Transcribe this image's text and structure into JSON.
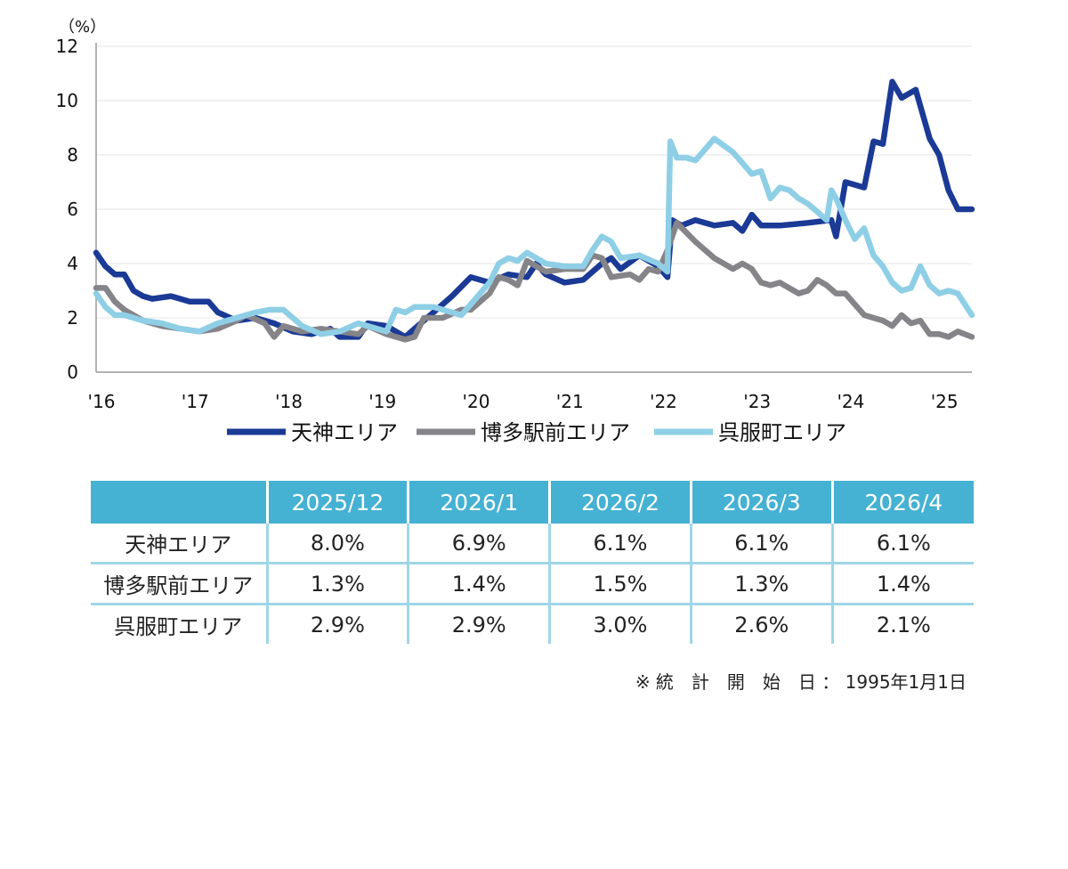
{
  "chart_data": {
    "type": "line",
    "unit_label": "（%）",
    "ylim": [
      0,
      12
    ],
    "yticks": [
      0,
      2,
      4,
      6,
      8,
      10,
      12
    ],
    "x_tick_labels": [
      "'16",
      "'17",
      "'18",
      "'19",
      "'20",
      "'21",
      "'22",
      "'23",
      "'24",
      "'25"
    ],
    "x_range": [
      2016.0,
      2025.35
    ],
    "grid": "horizontal",
    "legend_position": "bottom",
    "series": [
      {
        "name": "天神エリア",
        "color": "#1b3a96",
        "x": [
          2016.0,
          2016.1,
          2016.2,
          2016.3,
          2016.4,
          2016.5,
          2016.6,
          2016.8,
          2017.0,
          2017.2,
          2017.3,
          2017.5,
          2017.7,
          2017.9,
          2018.1,
          2018.3,
          2018.5,
          2018.6,
          2018.8,
          2018.9,
          2019.1,
          2019.2,
          2019.3,
          2019.4,
          2019.6,
          2019.8,
          2020.0,
          2020.2,
          2020.4,
          2020.6,
          2020.7,
          2020.8,
          2021.0,
          2021.2,
          2021.4,
          2021.5,
          2021.6,
          2021.8,
          2022.0,
          2022.1,
          2022.15,
          2022.25,
          2022.4,
          2022.6,
          2022.8,
          2022.9,
          2023.0,
          2023.1,
          2023.3,
          2023.6,
          2023.85,
          2023.9,
          2024.0,
          2024.2,
          2024.3,
          2024.4,
          2024.5,
          2024.6,
          2024.75,
          2024.9,
          2025.0,
          2025.1,
          2025.2,
          2025.35
        ],
        "values": [
          4.4,
          3.9,
          3.6,
          3.6,
          3.0,
          2.8,
          2.7,
          2.8,
          2.6,
          2.6,
          2.2,
          1.9,
          2.0,
          1.8,
          1.5,
          1.4,
          1.6,
          1.3,
          1.3,
          1.8,
          1.7,
          1.5,
          1.3,
          1.6,
          2.2,
          2.8,
          3.5,
          3.3,
          3.6,
          3.5,
          4.0,
          3.6,
          3.3,
          3.4,
          4.0,
          4.2,
          3.8,
          4.3,
          3.9,
          3.5,
          5.6,
          5.4,
          5.6,
          5.4,
          5.5,
          5.2,
          5.8,
          5.4,
          5.4,
          5.5,
          5.6,
          5.0,
          7.0,
          6.8,
          8.5,
          8.4,
          10.7,
          10.1,
          10.4,
          8.6,
          8.0,
          6.7,
          6.0,
          6.0
        ]
      },
      {
        "name": "博多駅前エリア",
        "color": "#858488",
        "x": [
          2016.0,
          2016.1,
          2016.2,
          2016.3,
          2016.5,
          2016.7,
          2016.9,
          2017.1,
          2017.3,
          2017.5,
          2017.6,
          2017.8,
          2017.9,
          2018.0,
          2018.2,
          2018.4,
          2018.6,
          2018.8,
          2018.9,
          2019.1,
          2019.3,
          2019.4,
          2019.5,
          2019.7,
          2019.9,
          2020.0,
          2020.2,
          2020.3,
          2020.4,
          2020.5,
          2020.6,
          2020.8,
          2021.0,
          2021.2,
          2021.3,
          2021.4,
          2021.5,
          2021.7,
          2021.8,
          2021.9,
          2022.0,
          2022.1,
          2022.2,
          2022.4,
          2022.6,
          2022.8,
          2022.9,
          2023.0,
          2023.1,
          2023.2,
          2023.3,
          2023.5,
          2023.6,
          2023.7,
          2023.8,
          2023.9,
          2024.0,
          2024.1,
          2024.2,
          2024.4,
          2024.5,
          2024.6,
          2024.7,
          2024.8,
          2024.9,
          2025.0,
          2025.1,
          2025.2,
          2025.35
        ],
        "values": [
          3.1,
          3.1,
          2.6,
          2.3,
          1.9,
          1.7,
          1.6,
          1.5,
          1.6,
          1.9,
          2.1,
          1.8,
          1.3,
          1.7,
          1.5,
          1.6,
          1.5,
          1.4,
          1.7,
          1.4,
          1.2,
          1.3,
          2.0,
          2.0,
          2.3,
          2.3,
          2.9,
          3.5,
          3.4,
          3.2,
          4.1,
          3.7,
          3.8,
          3.8,
          4.3,
          4.2,
          3.5,
          3.6,
          3.4,
          3.8,
          3.7,
          4.5,
          5.5,
          4.8,
          4.2,
          3.8,
          4.0,
          3.8,
          3.3,
          3.2,
          3.3,
          2.9,
          3.0,
          3.4,
          3.2,
          2.9,
          2.9,
          2.5,
          2.1,
          1.9,
          1.7,
          2.1,
          1.8,
          1.9,
          1.4,
          1.4,
          1.3,
          1.5,
          1.3
        ]
      },
      {
        "name": "呉服町エリア",
        "color": "#8ecfe6",
        "x": [
          2016.0,
          2016.1,
          2016.2,
          2016.3,
          2016.5,
          2016.7,
          2016.9,
          2017.1,
          2017.3,
          2017.5,
          2017.7,
          2017.85,
          2018.0,
          2018.2,
          2018.4,
          2018.6,
          2018.8,
          2019.0,
          2019.1,
          2019.2,
          2019.3,
          2019.4,
          2019.6,
          2019.8,
          2019.9,
          2020.0,
          2020.2,
          2020.3,
          2020.4,
          2020.5,
          2020.6,
          2020.8,
          2021.0,
          2021.2,
          2021.3,
          2021.4,
          2021.5,
          2021.6,
          2021.8,
          2022.0,
          2022.1,
          2022.13,
          2022.2,
          2022.3,
          2022.4,
          2022.5,
          2022.6,
          2022.8,
          2022.9,
          2023.0,
          2023.1,
          2023.2,
          2023.3,
          2023.4,
          2023.5,
          2023.6,
          2023.7,
          2023.8,
          2023.85,
          2023.9,
          2024.0,
          2024.1,
          2024.2,
          2024.3,
          2024.4,
          2024.5,
          2024.6,
          2024.7,
          2024.8,
          2024.9,
          2025.0,
          2025.1,
          2025.2,
          2025.35
        ],
        "values": [
          2.9,
          2.4,
          2.1,
          2.1,
          1.9,
          1.8,
          1.6,
          1.5,
          1.8,
          2.0,
          2.2,
          2.3,
          2.3,
          1.7,
          1.4,
          1.5,
          1.8,
          1.6,
          1.5,
          2.3,
          2.2,
          2.4,
          2.4,
          2.2,
          2.1,
          2.5,
          3.3,
          4.0,
          4.2,
          4.1,
          4.4,
          4.0,
          3.9,
          3.9,
          4.5,
          5.0,
          4.8,
          4.2,
          4.3,
          4.0,
          3.7,
          8.5,
          7.9,
          7.9,
          7.8,
          8.2,
          8.6,
          8.1,
          7.7,
          7.3,
          7.4,
          6.4,
          6.8,
          6.7,
          6.4,
          6.2,
          5.9,
          5.6,
          6.7,
          6.4,
          5.6,
          4.9,
          5.3,
          4.3,
          3.9,
          3.3,
          3.0,
          3.1,
          3.9,
          3.2,
          2.9,
          3.0,
          2.9,
          2.1
        ]
      }
    ]
  },
  "table": {
    "headers": [
      "",
      "2025/12",
      "2026/1",
      "2026/2",
      "2026/3",
      "2026/4"
    ],
    "rows": [
      {
        "label": "天神エリア",
        "cells": [
          "8.0%",
          "6.9%",
          "6.1%",
          "6.1%",
          "6.1%"
        ]
      },
      {
        "label": "博多駅前エリア",
        "cells": [
          "1.3%",
          "1.4%",
          "1.5%",
          "1.3%",
          "1.4%"
        ]
      },
      {
        "label": "呉服町エリア",
        "cells": [
          "2.9%",
          "2.9%",
          "3.0%",
          "2.6%",
          "2.1%"
        ]
      }
    ]
  },
  "note": "※ 統　計　開　始　日 ： 1995年1月1日"
}
